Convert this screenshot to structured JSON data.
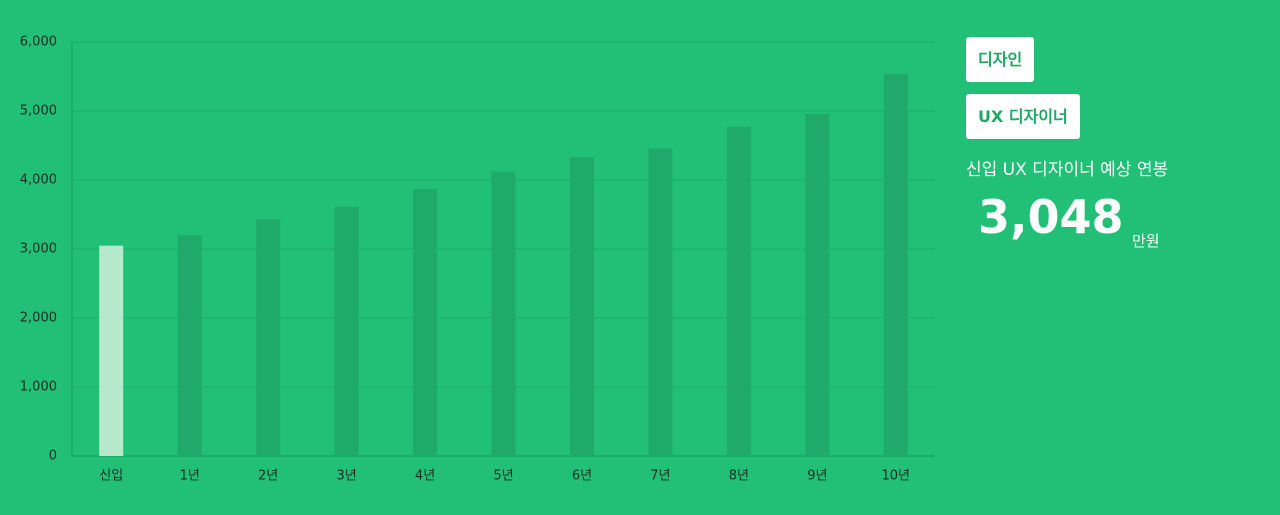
{
  "chart_data": {
    "type": "bar",
    "categories": [
      "신입",
      "1년",
      "2년",
      "3년",
      "4년",
      "5년",
      "6년",
      "7년",
      "8년",
      "9년",
      "10년"
    ],
    "values": [
      3048,
      3200,
      3430,
      3610,
      3870,
      4120,
      4330,
      4460,
      4770,
      4960,
      5540
    ],
    "colors": [
      "#b6e8cb",
      "#1fa96a",
      "#1fa96a",
      "#1fa96a",
      "#1fa96a",
      "#1fa96a",
      "#1fa96a",
      "#1fa96a",
      "#1fa96a",
      "#1fa96a",
      "#1fa96a"
    ],
    "ylim": [
      0,
      6000
    ],
    "yticks": [
      0,
      {
        "value": 1000,
        "label": "1,000"
      },
      {
        "value": 2000,
        "label": "2,000"
      },
      {
        "value": 3000,
        "label": "3,000"
      },
      {
        "value": 4000,
        "label": "4,000"
      },
      {
        "value": 5000,
        "label": "5,000"
      },
      {
        "value": 6000,
        "label": "6,000"
      }
    ],
    "grid": true
  },
  "panel": {
    "tags": [
      "디자인",
      "UX 디자이너"
    ],
    "caption": "신입 UX 디자이너 예상 연봉",
    "amount": "3,048",
    "unit": "만원"
  }
}
